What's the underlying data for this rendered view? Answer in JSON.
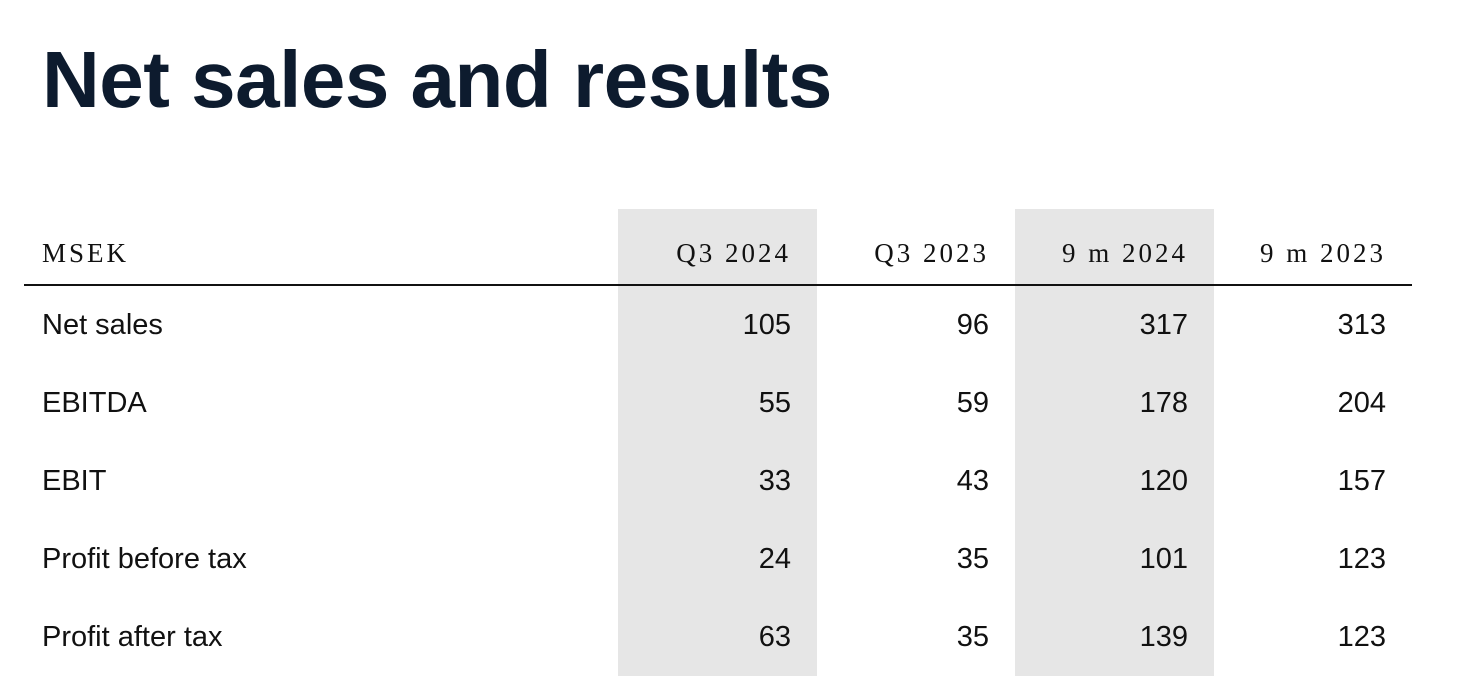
{
  "header": {
    "title": "Net sales and results"
  },
  "table": {
    "columns": [
      "MSEK",
      "Q3 2024",
      "Q3 2023",
      "9 m 2024",
      "9 m 2023"
    ],
    "rows": [
      [
        "Net sales",
        105,
        96,
        317,
        313
      ],
      [
        "EBITDA",
        55,
        59,
        178,
        204
      ],
      [
        "EBIT",
        33,
        43,
        120,
        157
      ],
      [
        "Profit before tax",
        24,
        35,
        101,
        123
      ],
      [
        "Profit after tax",
        63,
        35,
        139,
        123
      ]
    ]
  }
}
